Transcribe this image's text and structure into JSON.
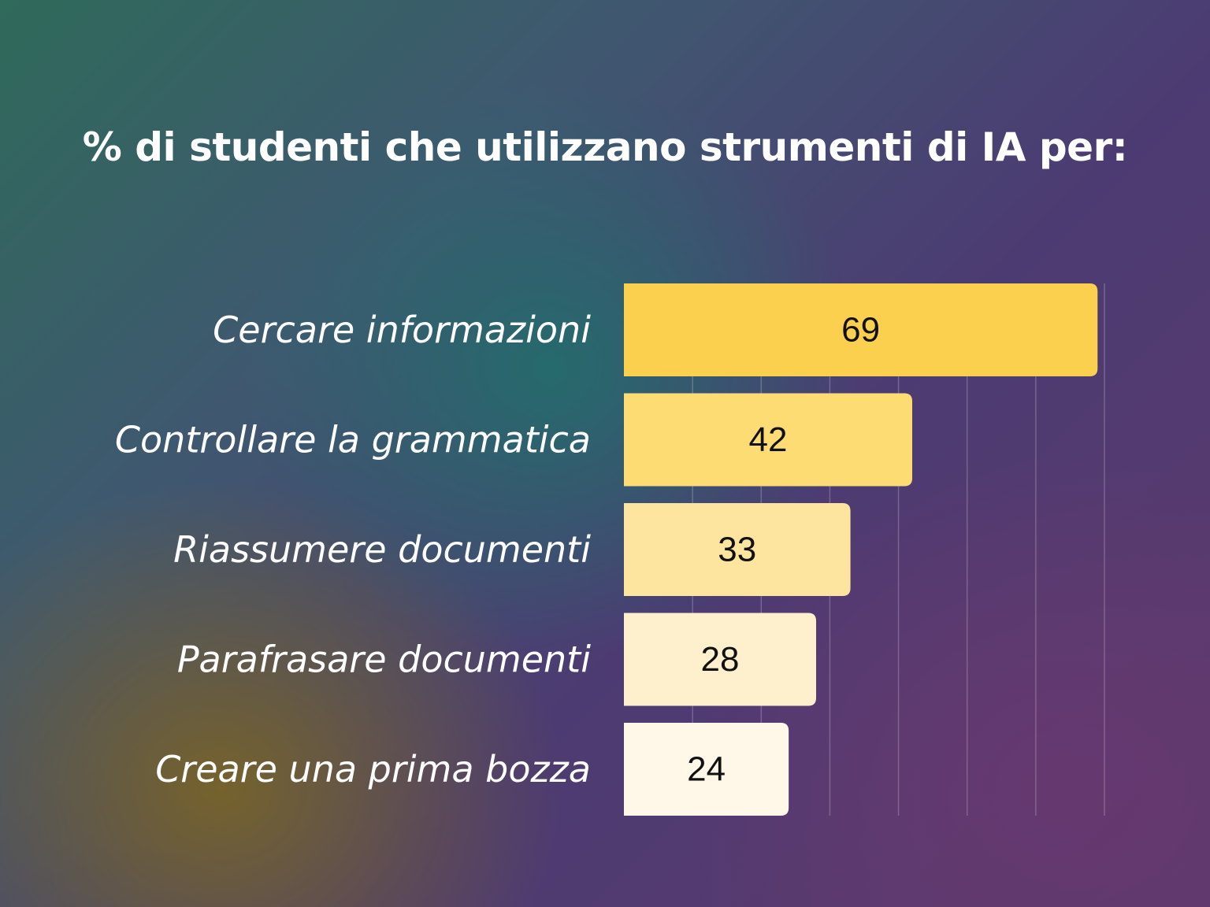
{
  "chart_data": {
    "type": "bar",
    "orientation": "horizontal",
    "title": "% di studenti che utilizzano strumenti di IA per:",
    "categories": [
      "Cercare informazioni",
      "Controllare la grammatica",
      "Riassumere documenti",
      "Parafrasare documenti",
      "Creare una prima bozza"
    ],
    "values": [
      69,
      42,
      33,
      28,
      24
    ],
    "xlim": [
      0,
      70
    ],
    "grid": true,
    "bar_colors": [
      "#fbd04f",
      "#fddc74",
      "#fde59f",
      "#fef0cd",
      "#fff8e8"
    ]
  }
}
